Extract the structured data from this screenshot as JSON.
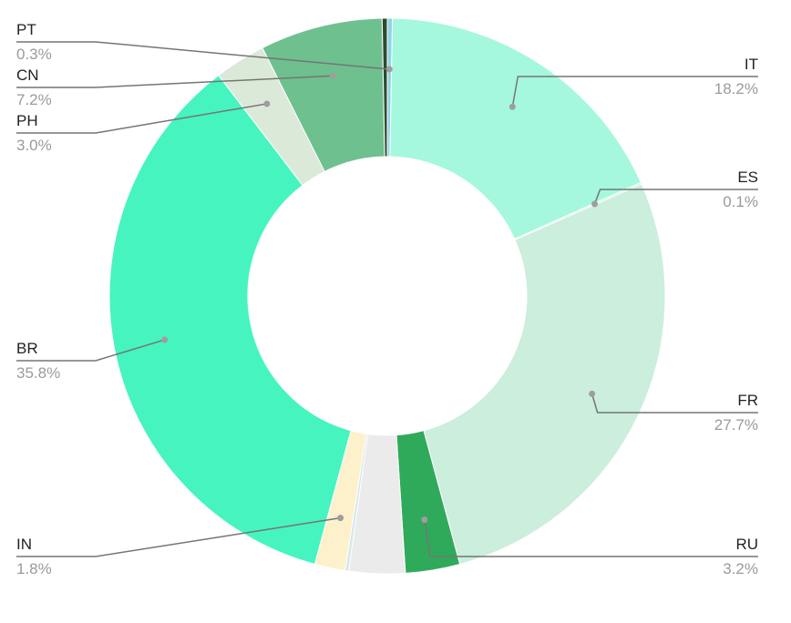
{
  "chart_data": {
    "type": "pie",
    "donut": true,
    "title": "",
    "slices": [
      {
        "label": "PT",
        "pct_label": "0.3%",
        "value": 0.3,
        "color": "#8fd3e8"
      },
      {
        "label": "IT",
        "pct_label": "18.2%",
        "value": 18.2,
        "color": "#a5f8dd"
      },
      {
        "label": "ES",
        "pct_label": "0.1%",
        "value": 0.1,
        "color": "#b9f2d2"
      },
      {
        "label": "FR",
        "pct_label": "27.7%",
        "value": 27.7,
        "color": "#cbeedd"
      },
      {
        "label": "RU",
        "pct_label": "3.2%",
        "value": 3.2,
        "color": "#2faa5b"
      },
      {
        "label": "",
        "pct_label": "",
        "value": 3.3,
        "color": "#ebebeb"
      },
      {
        "label": "",
        "pct_label": "",
        "value": 0.2,
        "color": "#d6e6ea"
      },
      {
        "label": "IN",
        "pct_label": "1.8%",
        "value": 1.8,
        "color": "#fdf1cc"
      },
      {
        "label": "BR",
        "pct_label": "35.8%",
        "value": 35.8,
        "color": "#46f4bf"
      },
      {
        "label": "PH",
        "pct_label": "3.0%",
        "value": 3.0,
        "color": "#dbe9d9"
      },
      {
        "label": "CN",
        "pct_label": "7.2%",
        "value": 7.2,
        "color": "#6fc08f"
      },
      {
        "label": "",
        "pct_label": "",
        "value": 0.3,
        "color": "#2d4a2d"
      }
    ],
    "legend": "labels-with-leader-lines"
  }
}
